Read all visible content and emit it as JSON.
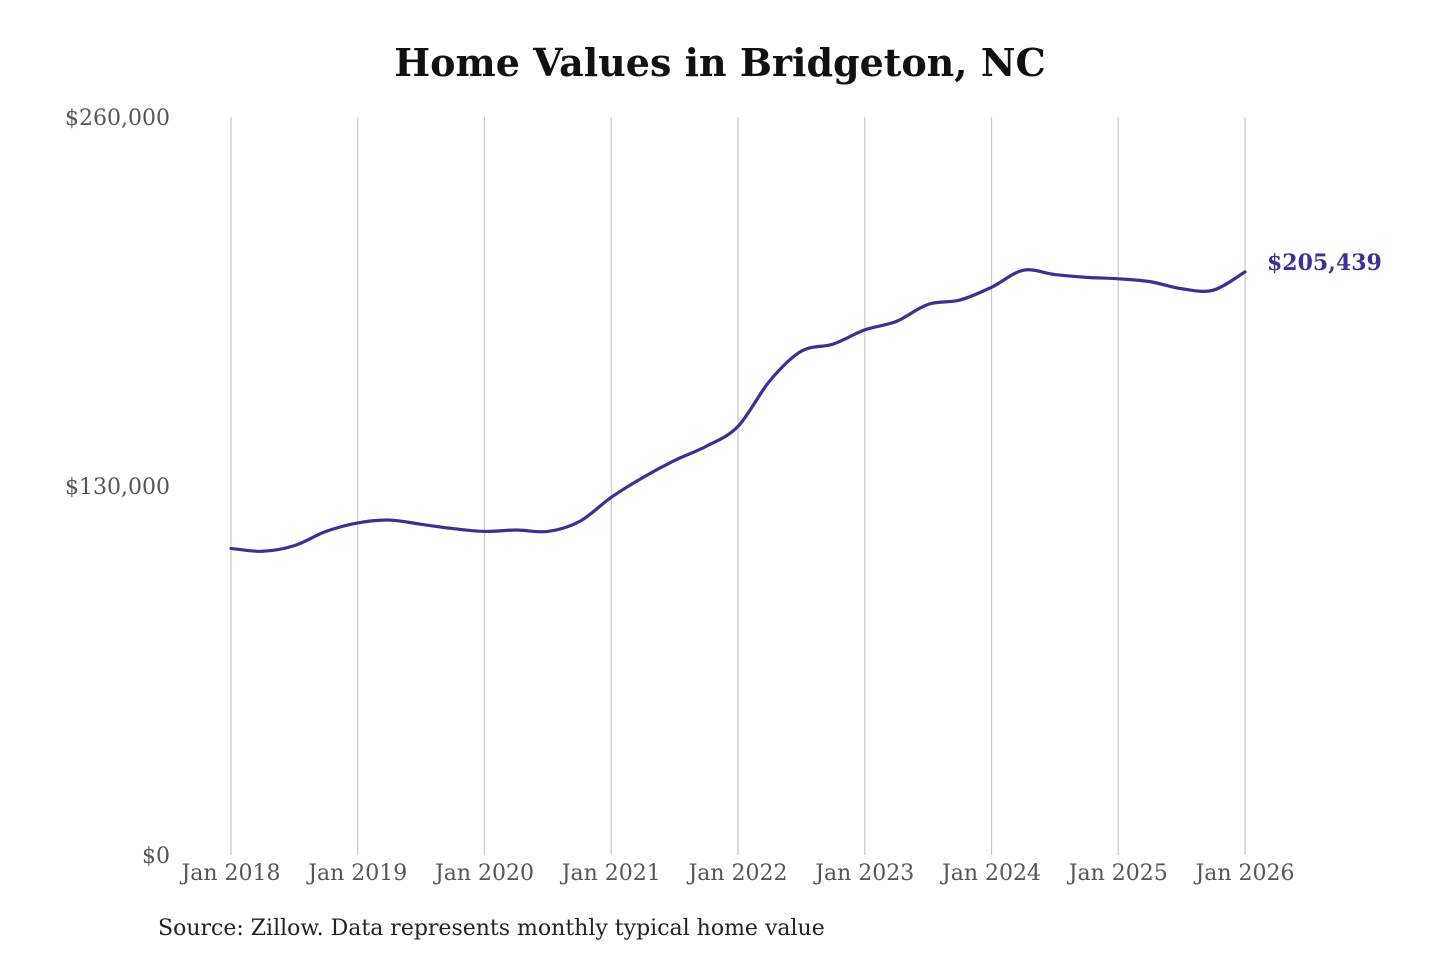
{
  "title": "Home Values in Bridgeton, NC",
  "source": "Source: Zillow. Data represents monthly typical home value",
  "colors": {
    "line": "#3a3191",
    "grid": "#c8c8c8",
    "tick_text": "#555555"
  },
  "chart_data": {
    "type": "line",
    "title": "Home Values in Bridgeton, NC",
    "xlabel": "",
    "ylabel": "",
    "ylim": [
      0,
      260000
    ],
    "yticks": [
      0,
      130000,
      260000
    ],
    "ytick_labels": [
      "$0",
      "$130,000",
      "$260,000"
    ],
    "xticks": [
      "2018-01",
      "2019-01",
      "2020-01",
      "2021-01",
      "2022-01",
      "2023-01",
      "2024-01",
      "2025-01",
      "2026-01"
    ],
    "xtick_labels": [
      "Jan 2018",
      "Jan 2019",
      "Jan 2020",
      "Jan 2021",
      "Jan 2022",
      "Jan 2023",
      "Jan 2024",
      "Jan 2025",
      "Jan 2026"
    ],
    "grid": "vertical",
    "end_label": "$205,439",
    "series": [
      {
        "points": [
          [
            "2018-01",
            108000
          ],
          [
            "2018-04",
            107000
          ],
          [
            "2018-07",
            109000
          ],
          [
            "2018-10",
            114000
          ],
          [
            "2019-01",
            117000
          ],
          [
            "2019-04",
            118000
          ],
          [
            "2019-07",
            116500
          ],
          [
            "2019-10",
            115000
          ],
          [
            "2020-01",
            114000
          ],
          [
            "2020-04",
            114500
          ],
          [
            "2020-07",
            114000
          ],
          [
            "2020-10",
            117500
          ],
          [
            "2021-01",
            126000
          ],
          [
            "2021-04",
            133000
          ],
          [
            "2021-07",
            139000
          ],
          [
            "2021-10",
            144000
          ],
          [
            "2022-01",
            151000
          ],
          [
            "2022-04",
            167000
          ],
          [
            "2022-07",
            177500
          ],
          [
            "2022-10",
            180000
          ],
          [
            "2023-01",
            185000
          ],
          [
            "2023-04",
            188000
          ],
          [
            "2023-07",
            194000
          ],
          [
            "2023-10",
            195500
          ],
          [
            "2024-01",
            200000
          ],
          [
            "2024-04",
            206000
          ],
          [
            "2024-07",
            204500
          ],
          [
            "2024-10",
            203500
          ],
          [
            "2025-01",
            203000
          ],
          [
            "2025-04",
            202000
          ],
          [
            "2025-07",
            199500
          ],
          [
            "2025-10",
            199000
          ],
          [
            "2026-01",
            205439
          ]
        ]
      }
    ]
  }
}
